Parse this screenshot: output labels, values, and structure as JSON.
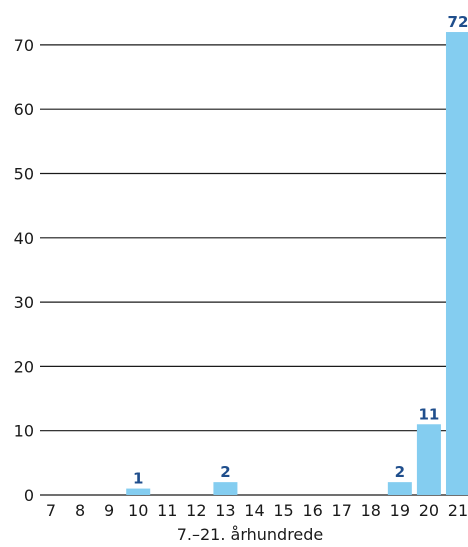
{
  "chart_data": {
    "type": "bar",
    "title": "",
    "xlabel": "7.–21. århundrede",
    "ylabel": "",
    "categories": [
      "7",
      "8",
      "9",
      "10",
      "11",
      "12",
      "13",
      "14",
      "15",
      "16",
      "17",
      "18",
      "19",
      "20",
      "21"
    ],
    "values": [
      0,
      0,
      0,
      1,
      0,
      0,
      2,
      0,
      0,
      0,
      0,
      0,
      2,
      11,
      72
    ],
    "ylim": [
      0,
      72
    ],
    "yticks": [
      "0",
      "10",
      "20",
      "30",
      "40",
      "50",
      "60",
      "70"
    ],
    "data_labels": [
      {
        "category": "10",
        "text": "1"
      },
      {
        "category": "13",
        "text": "2"
      },
      {
        "category": "19",
        "text": "2"
      },
      {
        "category": "20",
        "text": "11"
      },
      {
        "category": "21",
        "text": "72"
      }
    ],
    "grid": "horizontal",
    "legend": "none",
    "colors": {
      "bar": "#84cdf0",
      "data_label": "#1f4e8c",
      "grid": "#1a1a1a",
      "text": "#1a1a1a"
    }
  }
}
